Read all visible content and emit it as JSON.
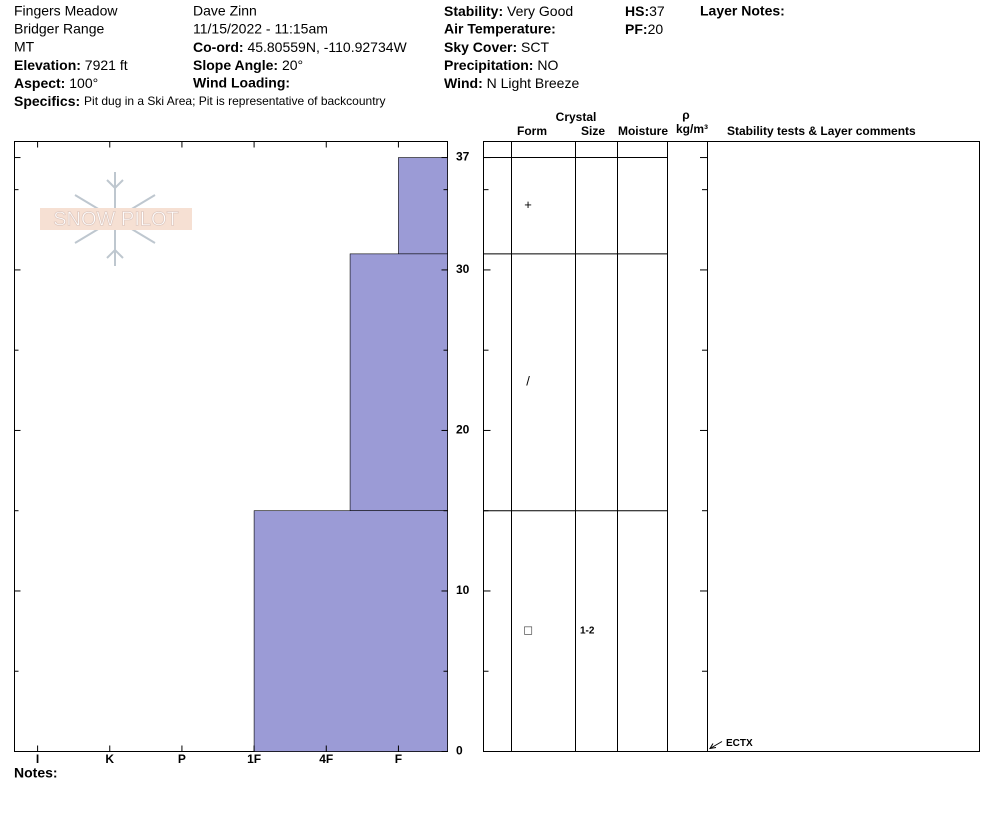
{
  "header": {
    "site": "Fingers Meadow",
    "range": "Bridger Range",
    "state": "MT",
    "elevation": {
      "label": "Elevation:",
      "value": "7921 ft"
    },
    "aspect": {
      "label": "Aspect:",
      "value": "100°"
    },
    "observer": "Dave Zinn",
    "datetime": "11/15/2022 - 11:15am",
    "coord": {
      "label": "Co-ord:",
      "value": "45.80559N, -110.92734W"
    },
    "slope": {
      "label": "Slope Angle:",
      "value": "20°"
    },
    "wind_loading": {
      "label": "Wind Loading:"
    },
    "stability": {
      "label": "Stability:",
      "value": "Very Good"
    },
    "air_temp": {
      "label": "Air Temperature:"
    },
    "sky": {
      "label": "Sky Cover:",
      "value": "SCT"
    },
    "precip": {
      "label": "Precipitation:",
      "value": "NO"
    },
    "wind": {
      "label": "Wind:",
      "value": "N Light Breeze"
    },
    "hs": {
      "label": "HS:",
      "value": 37
    },
    "pf": {
      "label": "PF:",
      "value": 20
    },
    "layer_notes": "Layer Notes:",
    "specifics": {
      "label": "Specifics:",
      "value": "Pit dug in a Ski Area; Pit is representative of backcountry"
    }
  },
  "logo": "SNOW PILOT",
  "notes": "Notes:",
  "chart_data": {
    "type": "snow-profile",
    "xlim": [
      5.32,
      -0.68
    ],
    "xticks": [
      {
        "value": 5,
        "label": "I"
      },
      {
        "value": 4,
        "label": "K"
      },
      {
        "value": 3,
        "label": "P"
      },
      {
        "value": 2,
        "label": "1F"
      },
      {
        "value": 1,
        "label": "4F"
      },
      {
        "value": 0,
        "label": "F"
      }
    ],
    "ylim": [
      0,
      38
    ],
    "yticks": [
      0,
      10,
      20,
      30,
      37
    ],
    "minor_yticks": [
      5,
      15,
      25,
      35
    ],
    "color": "#9b9bd6",
    "layers": [
      {
        "top": 37,
        "bottom": 31,
        "hardness": 0,
        "form": "+"
      },
      {
        "top": 31,
        "bottom": 15,
        "hardness": 0.67,
        "form": "/"
      },
      {
        "top": 15,
        "bottom": 0,
        "hardness": 2,
        "form": "□",
        "size": "1-2"
      }
    ],
    "table_headers": {
      "crystal": "Crystal",
      "form": "Form",
      "size": "Size",
      "moisture": "Moisture",
      "rho": "ρ",
      "density_unit": "kg/m³",
      "comments": "Stability tests & Layer comments"
    },
    "stability_tests": [
      {
        "name": "ECTX",
        "depth": 0
      }
    ]
  }
}
